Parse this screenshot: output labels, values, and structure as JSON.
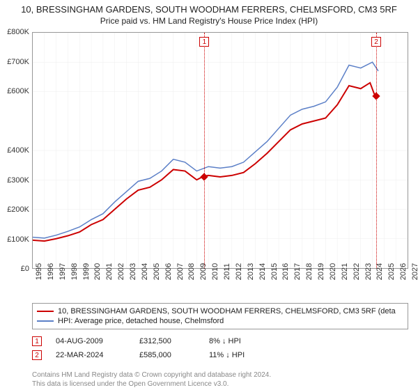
{
  "title": "10, BRESSINGHAM GARDENS, SOUTH WOODHAM FERRERS, CHELMSFORD, CM3 5RF",
  "subtitle": "Price paid vs. HM Land Registry's House Price Index (HPI)",
  "chart": {
    "type": "line",
    "xlim": [
      1995,
      2027
    ],
    "ylim": [
      0,
      800000
    ],
    "yticks": [
      0,
      100000,
      200000,
      300000,
      400000,
      600000,
      700000,
      800000
    ],
    "ytick_labels": [
      "£0",
      "£100K",
      "£200K",
      "£300K",
      "£400K",
      "£600K",
      "£700K",
      "£800K"
    ],
    "xticks": [
      1995,
      1996,
      1997,
      1998,
      1999,
      2000,
      2001,
      2002,
      2003,
      2004,
      2005,
      2006,
      2007,
      2008,
      2009,
      2010,
      2011,
      2012,
      2013,
      2014,
      2015,
      2016,
      2017,
      2018,
      2019,
      2020,
      2021,
      2022,
      2023,
      2024,
      2025,
      2026,
      2027
    ],
    "background_color": "#ffffff",
    "grid_color": "#eeeeee",
    "border_color": "#999999",
    "series": [
      {
        "name": "property",
        "label": "10, BRESSINGHAM GARDENS, SOUTH WOODHAM FERRERS, CHELMSFORD, CM3 5RF (deta",
        "color": "#cc0000",
        "width": 2,
        "points": [
          [
            1995,
            95000
          ],
          [
            1996,
            92000
          ],
          [
            1997,
            100000
          ],
          [
            1998,
            110000
          ],
          [
            1999,
            123000
          ],
          [
            2000,
            148000
          ],
          [
            2001,
            165000
          ],
          [
            2002,
            200000
          ],
          [
            2003,
            235000
          ],
          [
            2004,
            265000
          ],
          [
            2005,
            275000
          ],
          [
            2006,
            300000
          ],
          [
            2007,
            335000
          ],
          [
            2008,
            330000
          ],
          [
            2009,
            300000
          ],
          [
            2009.6,
            312500
          ],
          [
            2010,
            315000
          ],
          [
            2011,
            310000
          ],
          [
            2012,
            315000
          ],
          [
            2013,
            325000
          ],
          [
            2014,
            355000
          ],
          [
            2015,
            390000
          ],
          [
            2016,
            430000
          ],
          [
            2017,
            470000
          ],
          [
            2018,
            490000
          ],
          [
            2019,
            500000
          ],
          [
            2020,
            510000
          ],
          [
            2021,
            555000
          ],
          [
            2022,
            620000
          ],
          [
            2023,
            610000
          ],
          [
            2023.8,
            630000
          ],
          [
            2024.22,
            585000
          ]
        ]
      },
      {
        "name": "hpi",
        "label": "HPI: Average price, detached house, Chelmsford",
        "color": "#5b7fc7",
        "width": 1.5,
        "points": [
          [
            1995,
            105000
          ],
          [
            1996,
            102000
          ],
          [
            1997,
            112000
          ],
          [
            1998,
            125000
          ],
          [
            1999,
            140000
          ],
          [
            2000,
            165000
          ],
          [
            2001,
            185000
          ],
          [
            2002,
            225000
          ],
          [
            2003,
            260000
          ],
          [
            2004,
            295000
          ],
          [
            2005,
            305000
          ],
          [
            2006,
            330000
          ],
          [
            2007,
            370000
          ],
          [
            2008,
            360000
          ],
          [
            2009,
            330000
          ],
          [
            2010,
            345000
          ],
          [
            2011,
            340000
          ],
          [
            2012,
            345000
          ],
          [
            2013,
            360000
          ],
          [
            2014,
            395000
          ],
          [
            2015,
            430000
          ],
          [
            2016,
            475000
          ],
          [
            2017,
            520000
          ],
          [
            2018,
            540000
          ],
          [
            2019,
            550000
          ],
          [
            2020,
            565000
          ],
          [
            2021,
            615000
          ],
          [
            2022,
            690000
          ],
          [
            2023,
            680000
          ],
          [
            2024,
            700000
          ],
          [
            2024.5,
            670000
          ]
        ]
      }
    ],
    "sale_markers": [
      {
        "n": "1",
        "x": 2009.6,
        "y": 312500,
        "color": "#cc0000"
      },
      {
        "n": "2",
        "x": 2024.22,
        "y": 585000,
        "color": "#cc0000"
      }
    ]
  },
  "legend": [
    {
      "color": "#cc0000",
      "width": 2,
      "label": "10, BRESSINGHAM GARDENS, SOUTH WOODHAM FERRERS, CHELMSFORD, CM3 5RF (deta"
    },
    {
      "color": "#5b7fc7",
      "width": 1.5,
      "label": "HPI: Average price, detached house, Chelmsford"
    }
  ],
  "sales": [
    {
      "n": "1",
      "color": "#cc0000",
      "date": "04-AUG-2009",
      "price": "£312,500",
      "diff": "8% ↓ HPI"
    },
    {
      "n": "2",
      "color": "#cc0000",
      "date": "22-MAR-2024",
      "price": "£585,000",
      "diff": "11% ↓ HPI"
    }
  ],
  "attribution_line1": "Contains HM Land Registry data © Crown copyright and database right 2024.",
  "attribution_line2": "This data is licensed under the Open Government Licence v3.0."
}
